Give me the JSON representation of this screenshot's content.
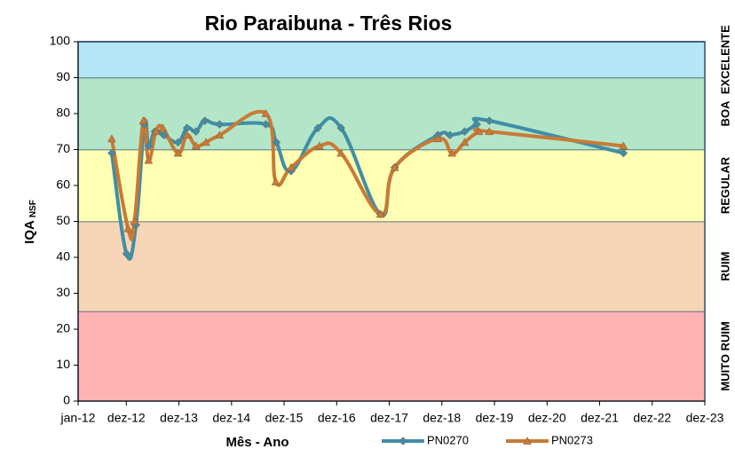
{
  "chart_data": {
    "type": "line",
    "title": "Rio Paraibuna - Três Rios",
    "xlabel": "Mês - Ano",
    "ylabel": "IQA",
    "ylabel_sub": "NSF",
    "xlim": [
      2012.0,
      2023.917
    ],
    "xticks": [
      {
        "value": 2012.0,
        "label": "jan-12"
      },
      {
        "value": 2012.917,
        "label": "dez-12"
      },
      {
        "value": 2013.917,
        "label": "dez-13"
      },
      {
        "value": 2014.917,
        "label": "dez-14"
      },
      {
        "value": 2015.917,
        "label": "dez-15"
      },
      {
        "value": 2016.917,
        "label": "dez-16"
      },
      {
        "value": 2017.917,
        "label": "dez-17"
      },
      {
        "value": 2018.917,
        "label": "dez-18"
      },
      {
        "value": 2019.917,
        "label": "dez-19"
      },
      {
        "value": 2020.917,
        "label": "dez-20"
      },
      {
        "value": 2021.917,
        "label": "dez-21"
      },
      {
        "value": 2022.917,
        "label": "dez-22"
      },
      {
        "value": 2023.917,
        "label": "dez-23"
      }
    ],
    "ylim": [
      0,
      100
    ],
    "yticks": [
      0,
      10,
      20,
      30,
      40,
      50,
      60,
      70,
      80,
      90,
      100
    ],
    "bands": [
      {
        "label": "MUITO RUIM",
        "from": 0,
        "to": 25,
        "color": "#ffb3b3"
      },
      {
        "label": "RUIM",
        "from": 25,
        "to": 50,
        "color": "#f5d5b5"
      },
      {
        "label": "REGULAR",
        "from": 50,
        "to": 70,
        "color": "#ffffb3"
      },
      {
        "label": "BOA",
        "from": 70,
        "to": 90,
        "color": "#b3e6c8"
      },
      {
        "label": "EXCELENTE",
        "from": 90,
        "to": 100,
        "color": "#b5e6f5"
      }
    ],
    "series": [
      {
        "name": "PN0270",
        "color": "#3f8ea8",
        "marker": "diamond",
        "x": [
          2012.64,
          2012.92,
          2013.1,
          2013.26,
          2013.34,
          2013.46,
          2013.63,
          2013.9,
          2014.07,
          2014.24,
          2014.41,
          2014.69,
          2015.57,
          2015.77,
          2016.05,
          2016.56,
          2017.0,
          2017.75,
          2018.02,
          2018.84,
          2019.07,
          2019.35,
          2019.58,
          2019.82,
          2022.37
        ],
        "values": [
          69,
          41,
          49,
          77,
          71,
          75,
          74,
          72,
          76,
          75,
          78,
          77,
          77,
          72,
          64,
          76,
          76,
          52,
          65,
          74,
          74,
          75,
          77,
          78,
          69
        ]
      },
      {
        "name": "PN0273",
        "color": "#c97a34",
        "marker": "triangle",
        "x": [
          2012.64,
          2012.95,
          2013.07,
          2013.24,
          2013.34,
          2013.48,
          2013.61,
          2013.9,
          2014.07,
          2014.24,
          2014.43,
          2014.69,
          2015.57,
          2015.76,
          2016.05,
          2016.59,
          2017.0,
          2017.75,
          2018.02,
          2018.84,
          2019.11,
          2019.35,
          2019.62,
          2019.82,
          2022.37
        ],
        "values": [
          73,
          48,
          50,
          78,
          67,
          75,
          76,
          69,
          74,
          71,
          72,
          74,
          80,
          61,
          65,
          71,
          69,
          52,
          65,
          73,
          69,
          72,
          75,
          75,
          71
        ]
      }
    ]
  }
}
